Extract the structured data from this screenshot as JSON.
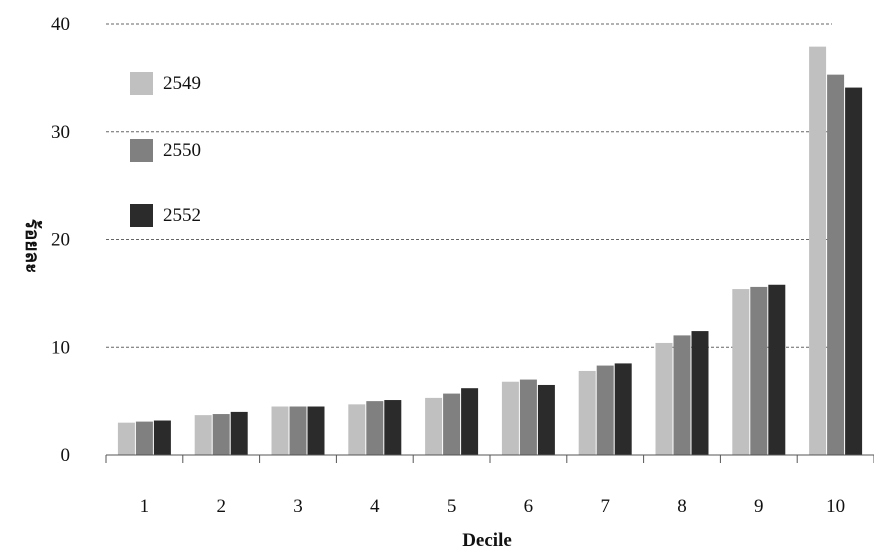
{
  "chart_data": {
    "type": "bar",
    "xlabel": "Decile",
    "ylabel": "ร้อยละ",
    "ylim": [
      0,
      40
    ],
    "yticks": [
      0,
      10,
      20,
      30,
      40
    ],
    "grid": true,
    "legend_position": "top-left",
    "categories": [
      "1",
      "2",
      "3",
      "4",
      "5",
      "6",
      "7",
      "8",
      "9",
      "10"
    ],
    "series": [
      {
        "name": "2549",
        "color": "#c0c0c0",
        "values": [
          3.0,
          3.7,
          4.5,
          4.7,
          5.3,
          6.8,
          7.8,
          10.4,
          15.4,
          37.9
        ]
      },
      {
        "name": "2550",
        "color": "#808080",
        "values": [
          3.1,
          3.8,
          4.5,
          5.0,
          5.7,
          7.0,
          8.3,
          11.1,
          15.6,
          35.3
        ]
      },
      {
        "name": "2552",
        "color": "#2b2b2b",
        "values": [
          3.2,
          4.0,
          4.5,
          5.1,
          6.2,
          6.5,
          8.5,
          11.5,
          15.8,
          34.1
        ]
      }
    ]
  }
}
